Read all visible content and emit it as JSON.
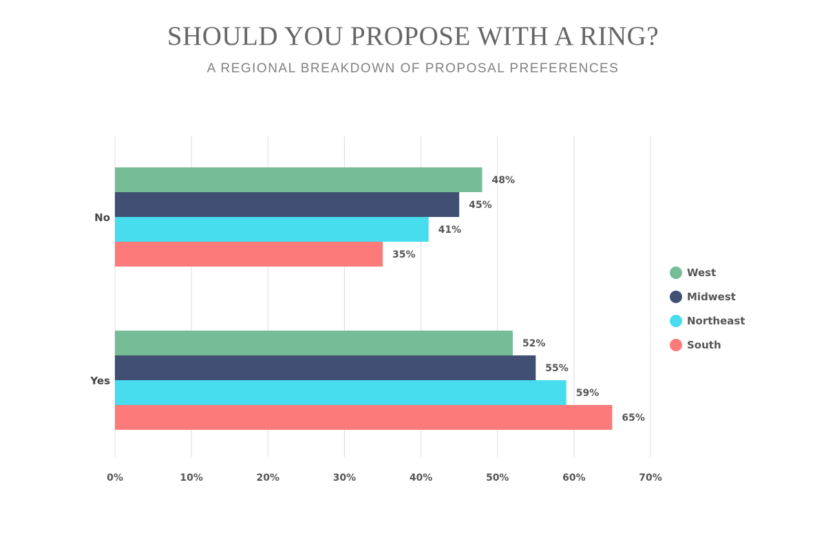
{
  "title": "SHOULD YOU PROPOSE WITH A RING?",
  "subtitle": "A REGIONAL BREAKDOWN OF PROPOSAL PREFERENCES",
  "chart_data": {
    "type": "bar",
    "orientation": "horizontal",
    "title": "SHOULD YOU PROPOSE WITH A RING?",
    "subtitle": "A REGIONAL BREAKDOWN OF PROPOSAL PREFERENCES",
    "categories": [
      "No",
      "Yes"
    ],
    "series": [
      {
        "name": "West",
        "color": "#76bd97",
        "values": [
          48,
          52
        ]
      },
      {
        "name": "Midwest",
        "color": "#404f72",
        "values": [
          45,
          55
        ]
      },
      {
        "name": "Northeast",
        "color": "#48dcef",
        "values": [
          41,
          59
        ]
      },
      {
        "name": "South",
        "color": "#fd7a7b",
        "values": [
          35,
          65
        ]
      }
    ],
    "value_suffix": "%",
    "xlim": [
      0,
      70
    ],
    "x_ticks": [
      "0%",
      "10%",
      "20%",
      "30%",
      "40%",
      "50%",
      "60%",
      "70%"
    ],
    "xlabel": "",
    "ylabel": "",
    "grid": "vertical",
    "legend_position": "right"
  }
}
